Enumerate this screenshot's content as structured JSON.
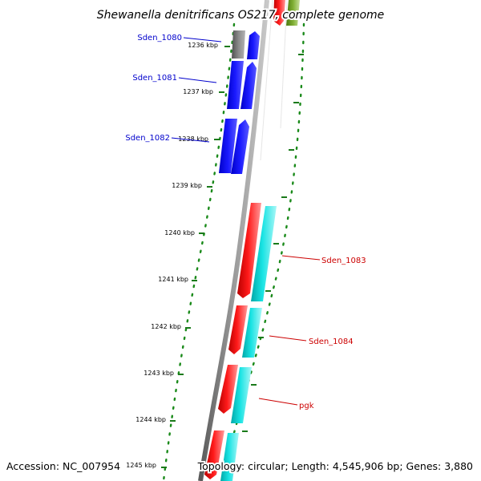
{
  "title": "Shewanella denitrificans OS217, complete genome",
  "footer": {
    "accession": "Accession: NC_007954",
    "summary": "Topology: circular; Length: 4,545,906 bp; Genes: 3,880"
  },
  "colors": {
    "background": "#ffffff",
    "backbone": "#8c8c8c",
    "ticks": "#1a7a1a",
    "dots": "#1a8a1a",
    "forward_gene": "#ff0000",
    "forward_gene_2": "#00d6d6",
    "reverse_gene": "#0000ff",
    "grey_gene": "#707070",
    "olive_gene": "#6f9a2a",
    "label_reverse": "#0000cc",
    "label_forward": "#cc0000"
  },
  "scale": {
    "unit": "kbp",
    "ticks": [
      {
        "value": 1236,
        "label": "1236 kbp"
      },
      {
        "value": 1237,
        "label": "1237 kbp"
      },
      {
        "value": 1238,
        "label": "1238 kbp"
      },
      {
        "value": 1239,
        "label": "1239 kbp"
      },
      {
        "value": 1240,
        "label": "1240 kbp"
      },
      {
        "value": 1241,
        "label": "1241 kbp"
      },
      {
        "value": 1242,
        "label": "1242 kbp"
      },
      {
        "value": 1243,
        "label": "1243 kbp"
      },
      {
        "value": 1244,
        "label": "1244 kbp"
      },
      {
        "value": 1245,
        "label": "1245 kbp"
      }
    ]
  },
  "genes": [
    {
      "label": "Sden_1080",
      "strand": "reverse",
      "color": "grey"
    },
    {
      "label": "Sden_1081",
      "strand": "reverse",
      "color": "blue"
    },
    {
      "label": "Sden_1082",
      "strand": "reverse",
      "color": "blue"
    },
    {
      "label": "Sden_1083",
      "strand": "forward",
      "color": "red"
    },
    {
      "label": "Sden_1084",
      "strand": "forward",
      "color": "red"
    },
    {
      "label": "pgk",
      "strand": "forward",
      "color": "red"
    }
  ]
}
